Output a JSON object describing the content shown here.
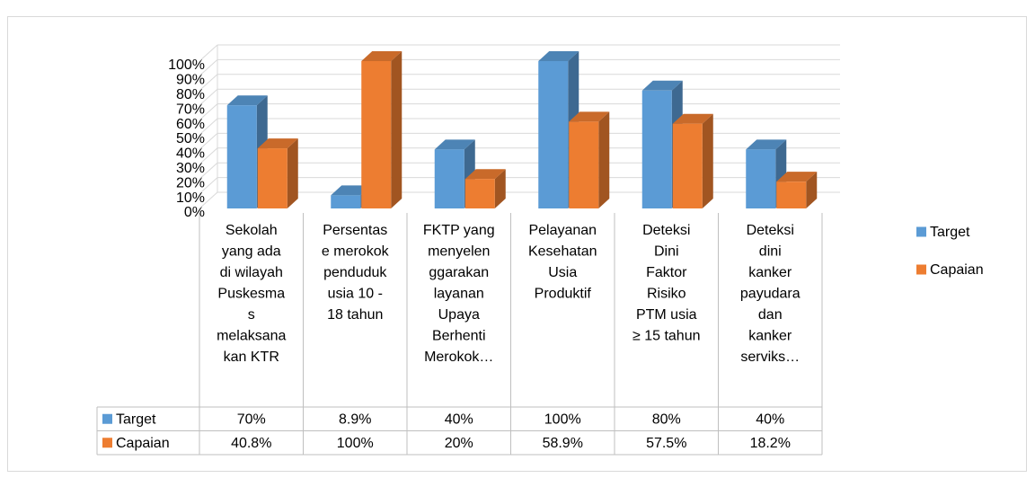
{
  "chart_data": {
    "type": "bar3d",
    "categories": [
      [
        "Sekolah",
        "yang ada",
        "di wilayah",
        "Puskesma",
        "s",
        "melaksana",
        "kan KTR"
      ],
      [
        "Persentas",
        "e merokok",
        "penduduk",
        "usia 10 -",
        "18 tahun"
      ],
      [
        "FKTP yang",
        "menyelen",
        "ggarakan",
        "layanan",
        "Upaya",
        "Berhenti",
        "Merokok…"
      ],
      [
        "Pelayanan",
        "Kesehatan",
        "Usia",
        "Produktif"
      ],
      [
        "Deteksi",
        "Dini",
        "Faktor",
        "Risiko",
        "PTM usia",
        "≥ 15 tahun"
      ],
      [
        "Deteksi",
        "dini",
        "kanker",
        "payudara",
        "dan",
        "kanker",
        "serviks…"
      ]
    ],
    "series": [
      {
        "name": "Target",
        "color": "#5b9bd5",
        "values": [
          70,
          8.9,
          40,
          100,
          80,
          40
        ],
        "value_labels": [
          "70%",
          "8.9%",
          "40%",
          "100%",
          "80%",
          "40%"
        ]
      },
      {
        "name": "Capaian",
        "color": "#ed7d31",
        "values": [
          40.8,
          100,
          20,
          58.9,
          57.5,
          18.2
        ],
        "value_labels": [
          "40.8%",
          "100%",
          "20%",
          "58.9%",
          "57.5%",
          "18.2%"
        ]
      }
    ],
    "ylim": [
      0,
      100
    ],
    "yticks": [
      {
        "value": 0,
        "label": "0%"
      },
      {
        "value": 10,
        "label": "10%"
      },
      {
        "value": 20,
        "label": "20%"
      },
      {
        "value": 30,
        "label": "30%"
      },
      {
        "value": 40,
        "label": "40%"
      },
      {
        "value": 50,
        "label": "50%"
      },
      {
        "value": 60,
        "label": "60%"
      },
      {
        "value": 70,
        "label": "70%"
      },
      {
        "value": 80,
        "label": "80%"
      },
      {
        "value": 90,
        "label": "90%"
      },
      {
        "value": 100,
        "label": "100%"
      }
    ],
    "grid": true,
    "legend": "right"
  }
}
